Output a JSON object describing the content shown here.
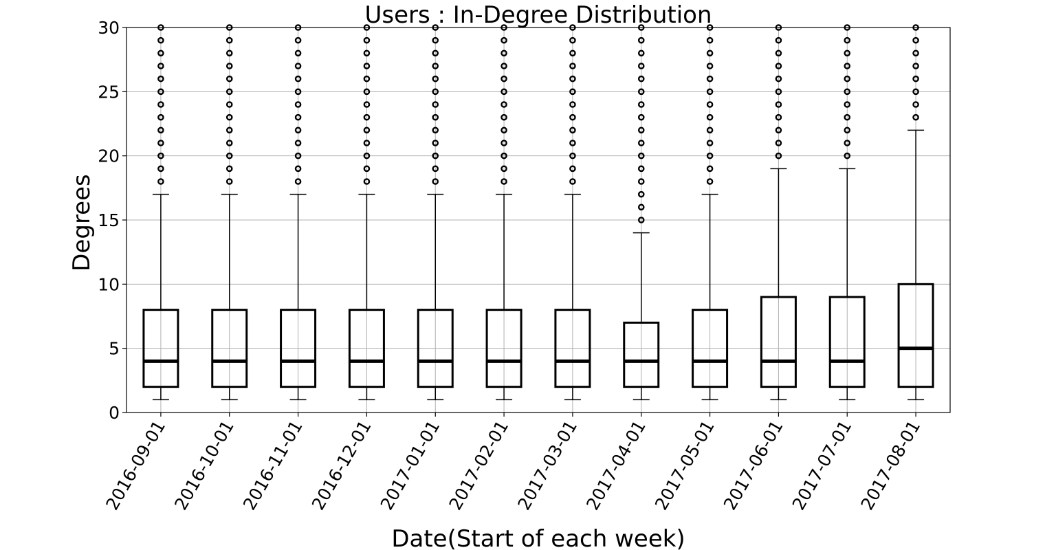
{
  "chart_data": {
    "type": "box",
    "title": "Users : In-Degree Distribution",
    "xlabel": "Date(Start of each week)",
    "ylabel": "Degrees",
    "ylim": [
      0,
      30
    ],
    "yticks": [
      0,
      5,
      10,
      15,
      20,
      25,
      30
    ],
    "grid": true,
    "categories": [
      "2016-09-01",
      "2016-10-01",
      "2016-11-01",
      "2016-12-01",
      "2017-01-01",
      "2017-02-01",
      "2017-03-01",
      "2017-04-01",
      "2017-05-01",
      "2017-06-01",
      "2017-07-01",
      "2017-08-01"
    ],
    "boxes": [
      {
        "whislo": 1,
        "q1": 2,
        "median": 4,
        "q3": 8,
        "whishi": 17,
        "fliers_from": 18
      },
      {
        "whislo": 1,
        "q1": 2,
        "median": 4,
        "q3": 8,
        "whishi": 17,
        "fliers_from": 18
      },
      {
        "whislo": 1,
        "q1": 2,
        "median": 4,
        "q3": 8,
        "whishi": 17,
        "fliers_from": 18
      },
      {
        "whislo": 1,
        "q1": 2,
        "median": 4,
        "q3": 8,
        "whishi": 17,
        "fliers_from": 18
      },
      {
        "whislo": 1,
        "q1": 2,
        "median": 4,
        "q3": 8,
        "whishi": 17,
        "fliers_from": 18
      },
      {
        "whislo": 1,
        "q1": 2,
        "median": 4,
        "q3": 8,
        "whishi": 17,
        "fliers_from": 18
      },
      {
        "whislo": 1,
        "q1": 2,
        "median": 4,
        "q3": 8,
        "whishi": 17,
        "fliers_from": 18
      },
      {
        "whislo": 1,
        "q1": 2,
        "median": 4,
        "q3": 7,
        "whishi": 14,
        "fliers_from": 15
      },
      {
        "whislo": 1,
        "q1": 2,
        "median": 4,
        "q3": 8,
        "whishi": 17,
        "fliers_from": 18
      },
      {
        "whislo": 1,
        "q1": 2,
        "median": 4,
        "q3": 9,
        "whishi": 19,
        "fliers_from": 20
      },
      {
        "whislo": 1,
        "q1": 2,
        "median": 4,
        "q3": 9,
        "whishi": 19,
        "fliers_from": 20
      },
      {
        "whislo": 1,
        "q1": 2,
        "median": 5,
        "q3": 10,
        "whishi": 22,
        "fliers_from": 23
      }
    ],
    "flier_values_note_max": 30
  }
}
